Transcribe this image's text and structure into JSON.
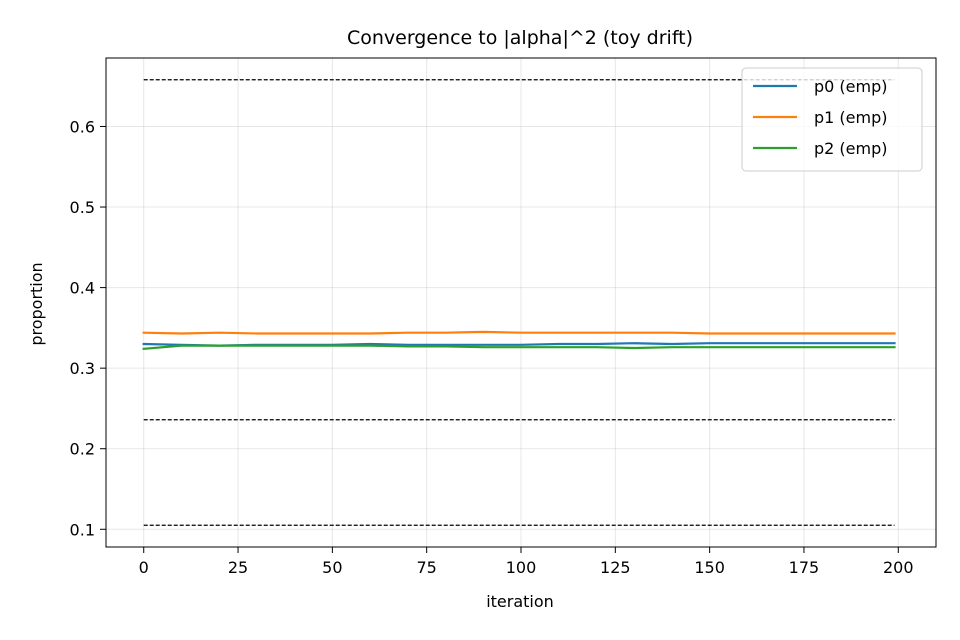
{
  "chart_data": {
    "type": "line",
    "title": "Convergence to |alpha|^2 (toy drift)",
    "xlabel": "iteration",
    "ylabel": "proportion",
    "xlim": [
      -10,
      210
    ],
    "ylim": [
      0.078,
      0.685
    ],
    "x_ticks": [
      0,
      25,
      50,
      75,
      100,
      125,
      150,
      175,
      200
    ],
    "y_ticks": [
      0.1,
      0.2,
      0.3,
      0.4,
      0.5,
      0.6
    ],
    "grid": true,
    "legend_position": "top-right",
    "x": [
      0,
      10,
      20,
      30,
      40,
      50,
      60,
      70,
      80,
      90,
      100,
      110,
      120,
      130,
      140,
      150,
      160,
      170,
      180,
      190,
      199
    ],
    "series": [
      {
        "name": "p0 (emp)",
        "color": "#1f77b4",
        "values": [
          0.33,
          0.329,
          0.328,
          0.329,
          0.329,
          0.329,
          0.33,
          0.329,
          0.329,
          0.329,
          0.329,
          0.33,
          0.33,
          0.331,
          0.33,
          0.331,
          0.331,
          0.331,
          0.331,
          0.331,
          0.331
        ]
      },
      {
        "name": "p1 (emp)",
        "color": "#ff7f0e",
        "values": [
          0.344,
          0.343,
          0.344,
          0.343,
          0.343,
          0.343,
          0.343,
          0.344,
          0.344,
          0.345,
          0.344,
          0.344,
          0.344,
          0.344,
          0.344,
          0.343,
          0.343,
          0.343,
          0.343,
          0.343,
          0.343
        ]
      },
      {
        "name": "p2 (emp)",
        "color": "#2ca02c",
        "values": [
          0.324,
          0.328,
          0.328,
          0.328,
          0.328,
          0.328,
          0.328,
          0.327,
          0.327,
          0.326,
          0.326,
          0.326,
          0.326,
          0.325,
          0.326,
          0.326,
          0.326,
          0.326,
          0.326,
          0.326,
          0.326
        ]
      }
    ],
    "reference_lines": [
      {
        "y": 0.658,
        "x_range": [
          0,
          199
        ],
        "style": "dashed",
        "color": "#000000"
      },
      {
        "y": 0.236,
        "x_range": [
          0,
          199
        ],
        "style": "dashed",
        "color": "#000000"
      },
      {
        "y": 0.105,
        "x_range": [
          0,
          199
        ],
        "style": "dashed",
        "color": "#000000"
      }
    ]
  }
}
